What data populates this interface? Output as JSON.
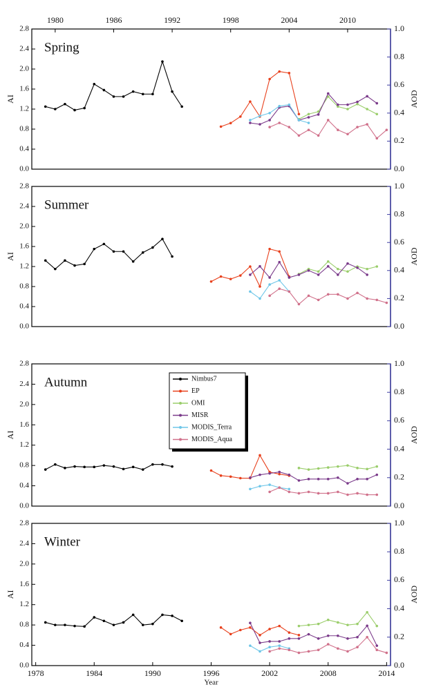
{
  "chart_data": [
    {
      "type": "line",
      "title": "Spring",
      "ylabel": "AI",
      "y2label": "AOD",
      "xlim": [
        1977.6,
        2014.4
      ],
      "xticks": [
        1980,
        1986,
        1992,
        1998,
        2004,
        2010
      ],
      "xtick_side": "top",
      "ylim": [
        0,
        2.8
      ],
      "yticks": [
        {
          "value": 0,
          "label": "0.0"
        },
        0.4,
        0.8,
        1.2,
        1.6,
        {
          "value": 2,
          "label": "2.0"
        },
        2.4,
        2.8
      ],
      "y2lim": [
        0,
        1
      ],
      "y2ticks": [
        {
          "value": 0,
          "label": "0.0"
        },
        0.2,
        0.4,
        0.6,
        0.8,
        {
          "value": 1,
          "label": "1.0"
        }
      ],
      "series": [
        {
          "color": "#000000",
          "x": [
            1979,
            1980,
            1981,
            1982,
            1983,
            1984,
            1985,
            1986,
            1987,
            1988,
            1989,
            1990,
            1991,
            1992,
            1993
          ],
          "values": [
            1.25,
            1.2,
            1.3,
            1.18,
            1.22,
            1.7,
            1.58,
            1.45,
            1.45,
            1.55,
            1.5,
            1.5,
            2.15,
            1.55,
            1.25
          ]
        },
        {
          "color": "#e8401c",
          "x": [
            1997,
            1998,
            1999,
            2000,
            2001,
            2002,
            2003,
            2004,
            2005
          ],
          "values": [
            0.85,
            0.92,
            1.05,
            1.35,
            1.05,
            1.8,
            1.95,
            1.92,
            1.1
          ]
        },
        {
          "color": "#9acd6a",
          "x": [
            2005,
            2006,
            2007,
            2008,
            2009,
            2010,
            2011,
            2012,
            2013
          ],
          "values": [
            1.0,
            1.1,
            1.15,
            1.45,
            1.25,
            1.2,
            1.3,
            1.2,
            1.1
          ]
        },
        {
          "color": "#7a3a8a",
          "axis": "y2",
          "x": [
            2000,
            2001,
            2002,
            2003,
            2004,
            2005,
            2006,
            2007,
            2008,
            2009,
            2010,
            2011,
            2012,
            2013
          ],
          "values": [
            0.33,
            0.32,
            0.35,
            0.44,
            0.45,
            0.35,
            0.37,
            0.39,
            0.54,
            0.46,
            0.46,
            0.48,
            0.52,
            0.47
          ]
        },
        {
          "color": "#6ec6e8",
          "axis": "y2",
          "x": [
            2000,
            2001,
            2002,
            2003,
            2004,
            2005,
            2006
          ],
          "values": [
            0.35,
            0.38,
            0.4,
            0.45,
            0.46,
            0.35,
            0.33
          ]
        },
        {
          "color": "#d0708a",
          "axis": "y2",
          "x": [
            2002,
            2003,
            2004,
            2005,
            2006,
            2007,
            2008,
            2009,
            2010,
            2011,
            2012,
            2013,
            2014
          ],
          "values": [
            0.3,
            0.33,
            0.3,
            0.24,
            0.28,
            0.24,
            0.35,
            0.28,
            0.25,
            0.3,
            0.32,
            0.22,
            0.28
          ]
        }
      ]
    },
    {
      "type": "line",
      "title": "Summer",
      "ylabel": "AI",
      "y2label": "AOD",
      "xlim": [
        1977.6,
        2014.4
      ],
      "ylim": [
        0,
        2.8
      ],
      "yticks": [
        {
          "value": 0,
          "label": "0.0"
        },
        0.4,
        0.8,
        1.2,
        1.6,
        {
          "value": 2,
          "label": "2.0"
        },
        2.4,
        2.8
      ],
      "y2lim": [
        0,
        1
      ],
      "y2ticks": [
        {
          "value": 0,
          "label": "0.0"
        },
        0.2,
        0.4,
        0.6,
        0.8,
        {
          "value": 1,
          "label": "1.0"
        }
      ],
      "series": [
        {
          "color": "#000000",
          "x": [
            1979,
            1980,
            1981,
            1982,
            1983,
            1984,
            1985,
            1986,
            1987,
            1988,
            1989,
            1990,
            1991,
            1992
          ],
          "values": [
            1.32,
            1.15,
            1.32,
            1.22,
            1.25,
            1.55,
            1.65,
            1.5,
            1.5,
            1.3,
            1.48,
            1.58,
            1.75,
            1.4
          ]
        },
        {
          "color": "#e8401c",
          "x": [
            1996,
            1997,
            1998,
            1999,
            2000,
            2001,
            2002,
            2003,
            2004
          ],
          "values": [
            0.9,
            1.0,
            0.95,
            1.02,
            1.2,
            0.8,
            1.55,
            1.5,
            1.0
          ]
        },
        {
          "color": "#9acd6a",
          "x": [
            2005,
            2006,
            2007,
            2008,
            2009,
            2010,
            2011,
            2012,
            2013
          ],
          "values": [
            1.05,
            1.15,
            1.1,
            1.3,
            1.15,
            1.1,
            1.2,
            1.15,
            1.2
          ]
        },
        {
          "color": "#7a3a8a",
          "axis": "y2",
          "x": [
            2000,
            2001,
            2002,
            2003,
            2004,
            2005,
            2006,
            2007,
            2008,
            2009,
            2010,
            2011,
            2012
          ],
          "values": [
            0.37,
            0.43,
            0.35,
            0.46,
            0.35,
            0.37,
            0.4,
            0.37,
            0.43,
            0.37,
            0.45,
            0.42,
            0.37
          ]
        },
        {
          "color": "#6ec6e8",
          "axis": "y2",
          "x": [
            2000,
            2001,
            2002,
            2003,
            2004
          ],
          "values": [
            0.25,
            0.2,
            0.3,
            0.33,
            0.25
          ]
        },
        {
          "color": "#d0708a",
          "axis": "y2",
          "x": [
            2002,
            2003,
            2004,
            2005,
            2006,
            2007,
            2008,
            2009,
            2010,
            2011,
            2012,
            2013,
            2014
          ],
          "values": [
            0.22,
            0.27,
            0.25,
            0.16,
            0.22,
            0.19,
            0.23,
            0.23,
            0.2,
            0.24,
            0.2,
            0.19,
            0.17
          ]
        }
      ]
    },
    {
      "type": "line",
      "title": "Autumn",
      "ylabel": "AI",
      "y2label": "AOD",
      "xlim": [
        1977.6,
        2014.4
      ],
      "ylim": [
        0,
        2.8
      ],
      "yticks": [
        {
          "value": 0,
          "label": "0.0"
        },
        0.4,
        0.8,
        1.2,
        1.6,
        {
          "value": 2,
          "label": "2.0"
        },
        2.4,
        2.8
      ],
      "y2lim": [
        0,
        1
      ],
      "y2ticks": [
        {
          "value": 0,
          "label": "0.0"
        },
        0.2,
        0.4,
        0.6,
        0.8,
        {
          "value": 1,
          "label": "1.0"
        }
      ],
      "legend": true,
      "series": [
        {
          "name": "Nimbus7",
          "color": "#000000",
          "x": [
            1979,
            1980,
            1981,
            1982,
            1983,
            1984,
            1985,
            1986,
            1987,
            1988,
            1989,
            1990,
            1991,
            1992
          ],
          "values": [
            0.72,
            0.82,
            0.75,
            0.78,
            0.77,
            0.77,
            0.8,
            0.78,
            0.73,
            0.77,
            0.72,
            0.82,
            0.82,
            0.78
          ]
        },
        {
          "name": "EP",
          "color": "#e8401c",
          "x": [
            1996,
            1997,
            1998,
            1999,
            2000,
            2001,
            2002,
            2003,
            2004
          ],
          "values": [
            0.7,
            0.6,
            0.58,
            0.55,
            0.55,
            1.0,
            0.67,
            0.63,
            0.6
          ]
        },
        {
          "name": "OMI",
          "color": "#9acd6a",
          "x": [
            2005,
            2006,
            2007,
            2008,
            2009,
            2010,
            2011,
            2012,
            2013
          ],
          "values": [
            0.75,
            0.72,
            0.74,
            0.76,
            0.78,
            0.8,
            0.75,
            0.73,
            0.78
          ]
        },
        {
          "name": "MISR",
          "color": "#7a3a8a",
          "axis": "y2",
          "x": [
            2000,
            2001,
            2002,
            2003,
            2004,
            2005,
            2006,
            2007,
            2008,
            2009,
            2010,
            2011,
            2012,
            2013
          ],
          "values": [
            0.2,
            0.22,
            0.23,
            0.24,
            0.22,
            0.18,
            0.19,
            0.19,
            0.19,
            0.2,
            0.16,
            0.19,
            0.19,
            0.22
          ]
        },
        {
          "name": "MODIS_Terra",
          "color": "#6ec6e8",
          "axis": "y2",
          "x": [
            2000,
            2001,
            2002,
            2003,
            2004
          ],
          "values": [
            0.12,
            0.14,
            0.15,
            0.13,
            0.12
          ]
        },
        {
          "name": "MODIS_Aqua",
          "color": "#d0708a",
          "axis": "y2",
          "x": [
            2002,
            2003,
            2004,
            2005,
            2006,
            2007,
            2008,
            2009,
            2010,
            2011,
            2012,
            2013
          ],
          "values": [
            0.1,
            0.13,
            0.1,
            0.09,
            0.1,
            0.09,
            0.09,
            0.1,
            0.08,
            0.09,
            0.08,
            0.08
          ]
        }
      ]
    },
    {
      "type": "line",
      "title": "Winter",
      "ylabel": "AI",
      "y2label": "AOD",
      "xlabel": "Year",
      "xlim": [
        1977.6,
        2014.4
      ],
      "xticks": [
        1978,
        1984,
        1990,
        1996,
        2002,
        2008,
        2014
      ],
      "xtick_side": "bottom",
      "ylim": [
        0,
        2.8
      ],
      "yticks": [
        {
          "value": 0,
          "label": "0.0"
        },
        0.4,
        0.8,
        1.2,
        1.6,
        {
          "value": 2,
          "label": "2.0"
        },
        2.4,
        2.8
      ],
      "y2lim": [
        0,
        1
      ],
      "y2ticks": [
        {
          "value": 0,
          "label": "0.0"
        },
        0.2,
        0.4,
        0.6,
        0.8,
        {
          "value": 1,
          "label": "1.0"
        }
      ],
      "series": [
        {
          "color": "#000000",
          "x": [
            1979,
            1980,
            1981,
            1982,
            1983,
            1984,
            1985,
            1986,
            1987,
            1988,
            1989,
            1990,
            1991,
            1992,
            1993
          ],
          "values": [
            0.85,
            0.8,
            0.8,
            0.78,
            0.77,
            0.95,
            0.88,
            0.8,
            0.85,
            1.0,
            0.8,
            0.82,
            1.0,
            0.98,
            0.88
          ]
        },
        {
          "color": "#e8401c",
          "x": [
            1997,
            1998,
            1999,
            2000,
            2001,
            2002,
            2003,
            2004,
            2005
          ],
          "values": [
            0.75,
            0.62,
            0.7,
            0.75,
            0.6,
            0.72,
            0.78,
            0.65,
            0.6
          ]
        },
        {
          "color": "#9acd6a",
          "x": [
            2005,
            2006,
            2007,
            2008,
            2009,
            2010,
            2011,
            2012,
            2013
          ],
          "values": [
            0.78,
            0.8,
            0.82,
            0.9,
            0.85,
            0.8,
            0.82,
            1.05,
            0.78
          ]
        },
        {
          "color": "#7a3a8a",
          "axis": "y2",
          "x": [
            2000,
            2001,
            2002,
            2003,
            2004,
            2005,
            2006,
            2007,
            2008,
            2009,
            2010,
            2011,
            2012,
            2013
          ],
          "values": [
            0.3,
            0.16,
            0.17,
            0.17,
            0.19,
            0.19,
            0.22,
            0.19,
            0.21,
            0.21,
            0.19,
            0.2,
            0.28,
            0.14
          ]
        },
        {
          "color": "#6ec6e8",
          "axis": "y2",
          "x": [
            2000,
            2001,
            2002,
            2003,
            2004
          ],
          "values": [
            0.14,
            0.1,
            0.13,
            0.14,
            0.12
          ]
        },
        {
          "color": "#d0708a",
          "axis": "y2",
          "x": [
            2002,
            2003,
            2004,
            2005,
            2006,
            2007,
            2008,
            2009,
            2010,
            2011,
            2012,
            2013,
            2014
          ],
          "values": [
            0.1,
            0.12,
            0.11,
            0.09,
            0.1,
            0.11,
            0.15,
            0.12,
            0.1,
            0.13,
            0.2,
            0.11,
            0.09
          ]
        }
      ]
    }
  ]
}
